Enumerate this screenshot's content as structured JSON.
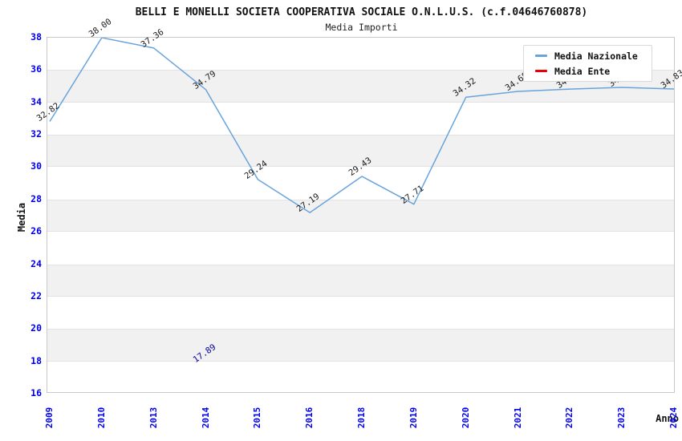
{
  "header": {
    "title": "BELLI E MONELLI SOCIETA COOPERATIVA SOCIALE O.N.L.U.S. (c.f.04646760878)",
    "subtitle": "Media Importi"
  },
  "axes": {
    "x_label": "Anno",
    "y_label": "Media",
    "y_ticks": [
      38,
      36,
      34,
      32,
      30,
      28,
      26,
      24,
      22,
      20,
      18,
      16
    ],
    "x_tick_labels": [
      "2009",
      "2010",
      "2013",
      "2014",
      "2015",
      "2016",
      "2018",
      "2019",
      "2020",
      "2021",
      "2022",
      "2023",
      "2024"
    ]
  },
  "legend": {
    "items": [
      {
        "label": "Media Nazionale",
        "color": "#68a4dc"
      },
      {
        "label": "Media Ente",
        "color": "#e8000b"
      }
    ]
  },
  "colors": {
    "tick_label_blue": "#0000ee",
    "grid_band_gray": "#f1f1f1",
    "grid_line_gray": "#e3e3e3",
    "plot_border_gray": "#c9c9c9",
    "national_line_blue": "#68a4dc",
    "ente_red": "#e8000b",
    "data_label_black": "#1a1a1a",
    "ente_label_navy": "#000099"
  },
  "chart_data": {
    "type": "line",
    "title": "BELLI E MONELLI SOCIETA COOPERATIVA SOCIALE O.N.L.U.S. (c.f.04646760878)",
    "subtitle": "Media Importi",
    "xlabel": "Anno",
    "ylabel": "Media",
    "ylim": [
      16,
      38
    ],
    "y_tick_step": 2,
    "grid": "alternating-horizontal-bands",
    "legend_position": "inside-top-right",
    "categories": [
      2009,
      2010,
      2013,
      2014,
      2015,
      2016,
      2018,
      2019,
      2020,
      2021,
      2022,
      2023,
      2024
    ],
    "series": [
      {
        "name": "Media Nazionale",
        "color": "#68a4dc",
        "values": [
          32.82,
          38.0,
          37.36,
          34.79,
          29.24,
          27.19,
          29.43,
          27.71,
          34.32,
          34.68,
          34.82,
          34.93,
          34.83
        ],
        "point_labels": [
          "32.82",
          "38.00",
          "37.36",
          "34.79",
          "29.24",
          "27.19",
          "29.43",
          "27.71",
          "34.32",
          "34.68",
          "34.82",
          "34.93",
          "34.83"
        ],
        "labels_occluded_by_legend": [
          2022,
          2023
        ],
        "occluded_values_estimated": true
      },
      {
        "name": "Media Ente",
        "color": "#e8000b",
        "label_color": "#000099",
        "values": [
          null,
          null,
          null,
          17.89,
          null,
          null,
          null,
          null,
          null,
          null,
          null,
          null,
          null
        ],
        "point_labels": [
          null,
          null,
          null,
          "17.89",
          null,
          null,
          null,
          null,
          null,
          null,
          null,
          null,
          null
        ]
      }
    ]
  }
}
